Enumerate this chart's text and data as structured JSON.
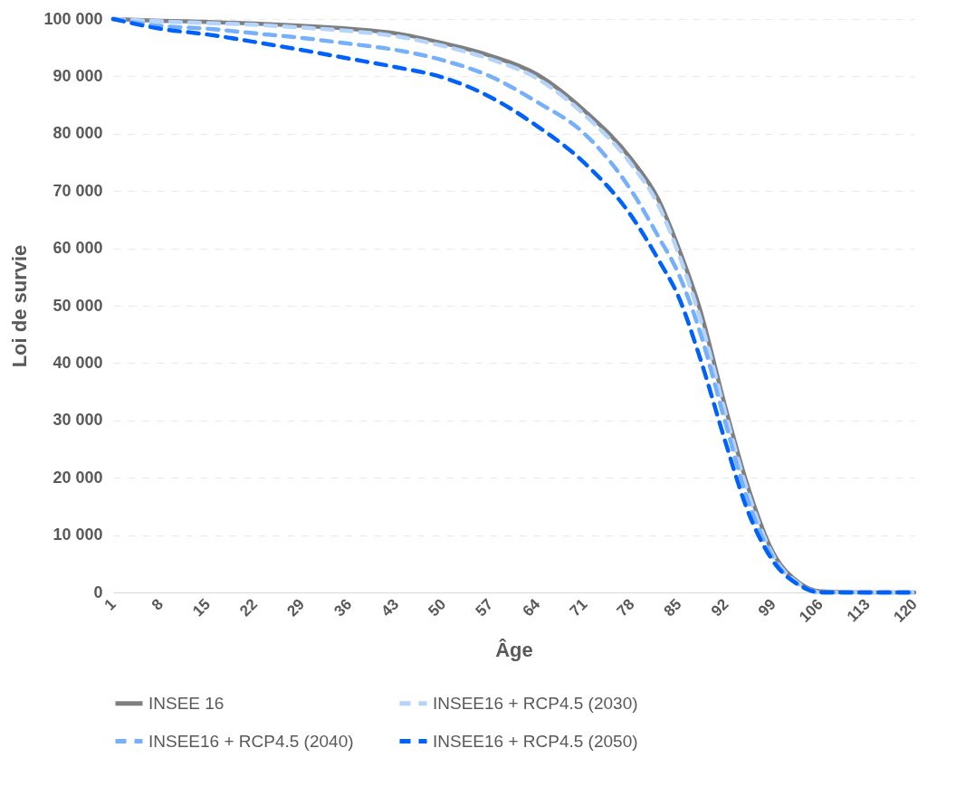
{
  "chart_data": {
    "type": "line",
    "xlabel": "Âge",
    "ylabel": "Loi de survie",
    "x": [
      1,
      8,
      15,
      22,
      29,
      36,
      43,
      50,
      57,
      64,
      71,
      78,
      82,
      85,
      88,
      92,
      95,
      99,
      103,
      106,
      113,
      120
    ],
    "xlim": [
      1,
      120
    ],
    "xticks": [
      1,
      8,
      15,
      22,
      29,
      36,
      43,
      50,
      57,
      64,
      71,
      78,
      85,
      92,
      99,
      106,
      113,
      120
    ],
    "ylim": [
      0,
      100000
    ],
    "yticks": [
      0,
      {
        "value": 10000,
        "label": "10 000"
      },
      {
        "value": 20000,
        "label": "20 000"
      },
      {
        "value": 30000,
        "label": "30 000"
      },
      {
        "value": 40000,
        "label": "40 000"
      },
      {
        "value": 50000,
        "label": "50 000"
      },
      {
        "value": 60000,
        "label": "60 000"
      },
      {
        "value": 70000,
        "label": "70 000"
      },
      {
        "value": 80000,
        "label": "80 000"
      },
      {
        "value": 90000,
        "label": "90 000"
      },
      {
        "value": 100000,
        "label": "100 000"
      }
    ],
    "grid": "y",
    "legend": "bottom",
    "marker": "none",
    "series": [
      {
        "name": "INSEE 16",
        "color": "#7f7f7f",
        "line_style": "solid",
        "values": [
          100000,
          99700,
          99500,
          99200,
          98800,
          98300,
          97500,
          95800,
          93600,
          90300,
          84000,
          75500,
          68500,
          60000,
          50000,
          32000,
          19500,
          7000,
          1600,
          200,
          0,
          0
        ]
      },
      {
        "name": "INSEE16 + RCP4.5 (2030)",
        "color": "#b4d4fb",
        "line_style": "dashed",
        "values": [
          100000,
          99600,
          99300,
          99000,
          98500,
          97900,
          97000,
          95300,
          93000,
          89600,
          83300,
          74600,
          67500,
          59000,
          48500,
          31000,
          18500,
          6500,
          1400,
          0,
          0,
          0
        ]
      },
      {
        "name": "INSEE16 + RCP4.5 (2040)",
        "color": "#77b0fa",
        "line_style": "dashed",
        "values": [
          100000,
          98800,
          98300,
          97500,
          96700,
          95700,
          94600,
          92800,
          90000,
          85500,
          80000,
          70000,
          62000,
          55500,
          46000,
          29300,
          17000,
          6000,
          1200,
          0,
          0,
          0
        ]
      },
      {
        "name": "INSEE16 + RCP4.5 (2050)",
        "color": "#0062fa",
        "line_style": "dashed",
        "values": [
          100000,
          98300,
          97300,
          96000,
          94600,
          93100,
          91600,
          89800,
          86400,
          81300,
          74900,
          65600,
          58000,
          51500,
          41500,
          26000,
          15000,
          5500,
          1200,
          0,
          0,
          0
        ]
      }
    ]
  }
}
